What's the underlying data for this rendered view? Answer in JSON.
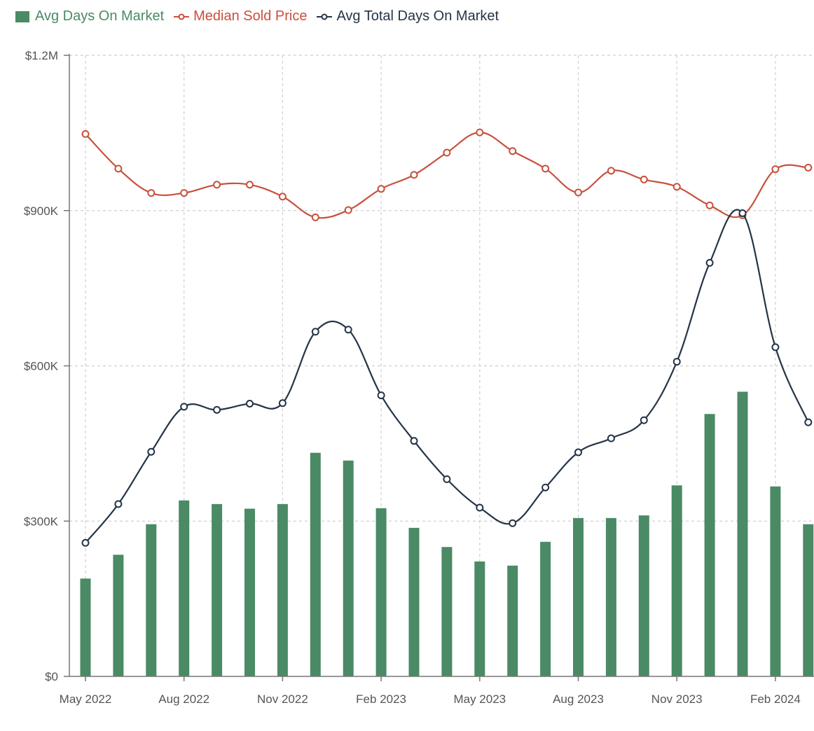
{
  "colors": {
    "bars": "#4a8a65",
    "median": "#c8503c",
    "total": "#243447",
    "grid": "#cfcfcf",
    "axis": "#777777"
  },
  "chart_data": {
    "type": "bar",
    "title": "",
    "xlabel": "",
    "ylabel": "",
    "ylim": [
      0,
      1200000
    ],
    "y_ticks": [
      {
        "value": 0,
        "label": "$0"
      },
      {
        "value": 300000,
        "label": "$300K"
      },
      {
        "value": 600000,
        "label": "$600K"
      },
      {
        "value": 900000,
        "label": "$900K"
      },
      {
        "value": 1200000,
        "label": "$1.2M"
      }
    ],
    "categories": [
      "May 2022",
      "Jun 2022",
      "Jul 2022",
      "Aug 2022",
      "Sep 2022",
      "Oct 2022",
      "Nov 2022",
      "Dec 2022",
      "Jan 2023",
      "Feb 2023",
      "Mar 2023",
      "Apr 2023",
      "May 2023",
      "Jun 2023",
      "Jul 2023",
      "Aug 2023",
      "Sep 2023",
      "Oct 2023",
      "Nov 2023",
      "Dec 2023",
      "Jan 2024",
      "Feb 2024",
      "Mar 2024"
    ],
    "x_tick_labels": [
      {
        "index": 0,
        "label": "May 2022"
      },
      {
        "index": 3,
        "label": "Aug 2022"
      },
      {
        "index": 6,
        "label": "Nov 2022"
      },
      {
        "index": 9,
        "label": "Feb 2023"
      },
      {
        "index": 12,
        "label": "May 2023"
      },
      {
        "index": 15,
        "label": "Aug 2023"
      },
      {
        "index": 18,
        "label": "Nov 2023"
      },
      {
        "index": 21,
        "label": "Feb 2024"
      }
    ],
    "grid": true,
    "legend_position": "top-left",
    "series": [
      {
        "name": "Avg Days On Market",
        "kind": "bar",
        "values": [
          189000,
          235000,
          294000,
          340000,
          333000,
          324000,
          333000,
          432000,
          417000,
          325000,
          287000,
          250000,
          222000,
          214000,
          260000,
          306000,
          306000,
          311000,
          369000,
          507000,
          550000,
          367000,
          294000
        ]
      },
      {
        "name": "Median Sold Price",
        "kind": "line",
        "values": [
          1048000,
          981000,
          934000,
          934000,
          950000,
          950000,
          927000,
          887000,
          901000,
          942000,
          969000,
          1012000,
          1051000,
          1015000,
          981000,
          935000,
          977000,
          960000,
          946000,
          910000,
          891000,
          980000,
          983000
        ]
      },
      {
        "name": "Avg Total Days On Market",
        "kind": "line",
        "values": [
          258000,
          333000,
          434000,
          521000,
          515000,
          527000,
          528000,
          666000,
          670000,
          543000,
          455000,
          381000,
          326000,
          296000,
          365000,
          433000,
          460000,
          495000,
          608000,
          799000,
          895000,
          636000,
          491000
        ]
      }
    ]
  }
}
